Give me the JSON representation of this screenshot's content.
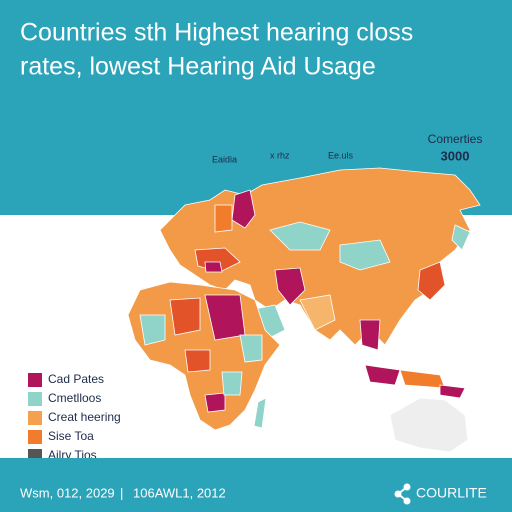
{
  "header": {
    "title_lines": [
      "Countries sth Highest hearing closs",
      "rates, lowest Hearing Aid Usage"
    ]
  },
  "badge": {
    "label": "Comerties",
    "value": "3000"
  },
  "map_labels": [
    "Eaidia",
    "x rhz",
    "Ee.uls"
  ],
  "legend": [
    {
      "label": "Cad Pates",
      "color": "#b0145a"
    },
    {
      "label": "Cmetlloos",
      "color": "#8fd3c9"
    },
    {
      "label": "Creat heering",
      "color": "#f5a04e"
    },
    {
      "label": "Sise Toa",
      "color": "#f07c2c"
    },
    {
      "label": "Ailry Tios",
      "color": "#555555"
    }
  ],
  "footer": {
    "left": "Wsm, 012, 2029",
    "separator": "|",
    "middle": "106AWL1, 2012",
    "brand": "COURLITE"
  }
}
